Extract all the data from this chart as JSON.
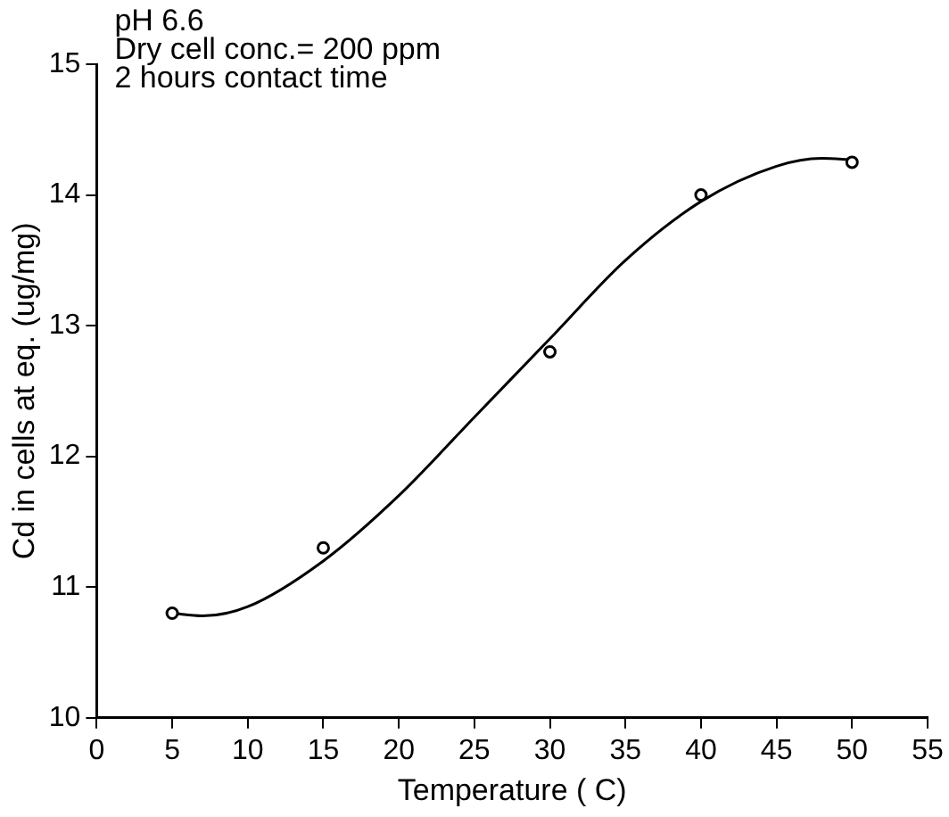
{
  "chart_data": {
    "type": "scatter",
    "xlabel": "Temperature ( C)",
    "ylabel": "Cd in cells at eq. (ug/mg)",
    "annotations": [
      "pH 6.6",
      "Dry cell conc.= 200 ppm",
      "2 hours contact time"
    ],
    "xlim": [
      0,
      55
    ],
    "xticks": [
      0,
      5,
      10,
      15,
      20,
      25,
      30,
      35,
      40,
      45,
      50,
      55
    ],
    "ylim": [
      10,
      15
    ],
    "yticks": [
      10,
      11,
      12,
      13,
      14,
      15
    ],
    "grid": false,
    "legend": false,
    "marker": "circle",
    "series": [
      {
        "color": "#000000",
        "x": [
          5,
          15,
          30,
          40,
          50
        ],
        "values": [
          10.8,
          11.3,
          12.8,
          14.0,
          14.25
        ]
      },
      {
        "type": "line",
        "color": "#000000",
        "marker": "none",
        "x": [
          5,
          7,
          10,
          15,
          20,
          25,
          30,
          35,
          40,
          45,
          48,
          50
        ],
        "values": [
          10.8,
          10.78,
          10.85,
          11.2,
          11.7,
          12.3,
          12.9,
          13.5,
          13.95,
          14.22,
          14.28,
          14.27
        ]
      }
    ]
  }
}
